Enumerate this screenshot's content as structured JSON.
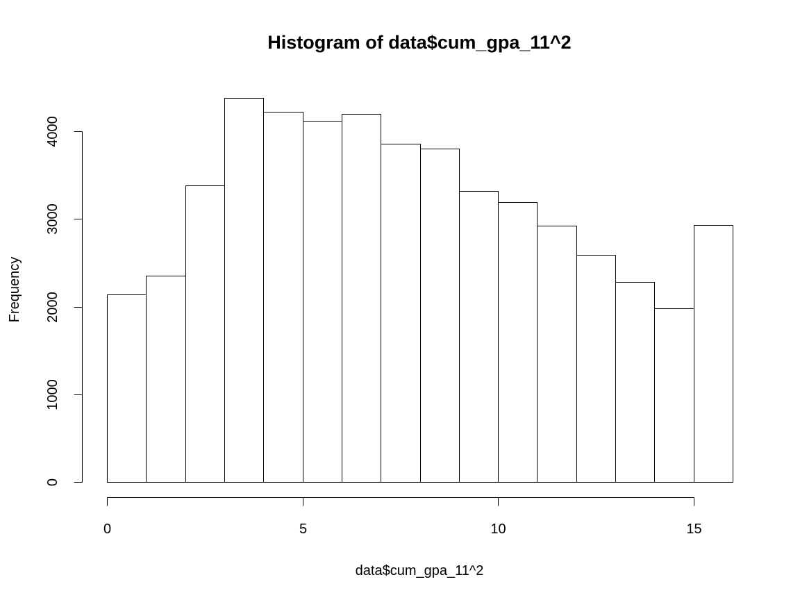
{
  "chart_data": {
    "type": "bar",
    "title": "Histogram of data$cum_gpa_11^2",
    "xlabel": "data$cum_gpa_11^2",
    "ylabel": "Frequency",
    "bins": [
      {
        "start": 0,
        "end": 1,
        "count": 2140
      },
      {
        "start": 1,
        "end": 2,
        "count": 2350
      },
      {
        "start": 2,
        "end": 3,
        "count": 3380
      },
      {
        "start": 3,
        "end": 4,
        "count": 4380
      },
      {
        "start": 4,
        "end": 5,
        "count": 4220
      },
      {
        "start": 5,
        "end": 6,
        "count": 4120
      },
      {
        "start": 6,
        "end": 7,
        "count": 4200
      },
      {
        "start": 7,
        "end": 8,
        "count": 3860
      },
      {
        "start": 8,
        "end": 9,
        "count": 3800
      },
      {
        "start": 9,
        "end": 10,
        "count": 3320
      },
      {
        "start": 10,
        "end": 11,
        "count": 3190
      },
      {
        "start": 11,
        "end": 12,
        "count": 2920
      },
      {
        "start": 12,
        "end": 13,
        "count": 2590
      },
      {
        "start": 13,
        "end": 14,
        "count": 2280
      },
      {
        "start": 14,
        "end": 15,
        "count": 1980
      },
      {
        "start": 15,
        "end": 16,
        "count": 2930
      }
    ],
    "xlim": [
      0,
      16
    ],
    "ylim": [
      0,
      4380
    ],
    "xticks": [
      0,
      5,
      10,
      15
    ],
    "xtick_labels": [
      "0",
      "5",
      "10",
      "15"
    ],
    "yticks": [
      0,
      1000,
      2000,
      3000,
      4000
    ],
    "ytick_labels": [
      "0",
      "1000",
      "2000",
      "3000",
      "4000"
    ],
    "bar_fill": "#ffffff",
    "bar_stroke": "#000000",
    "grid": false,
    "legend": "none"
  }
}
